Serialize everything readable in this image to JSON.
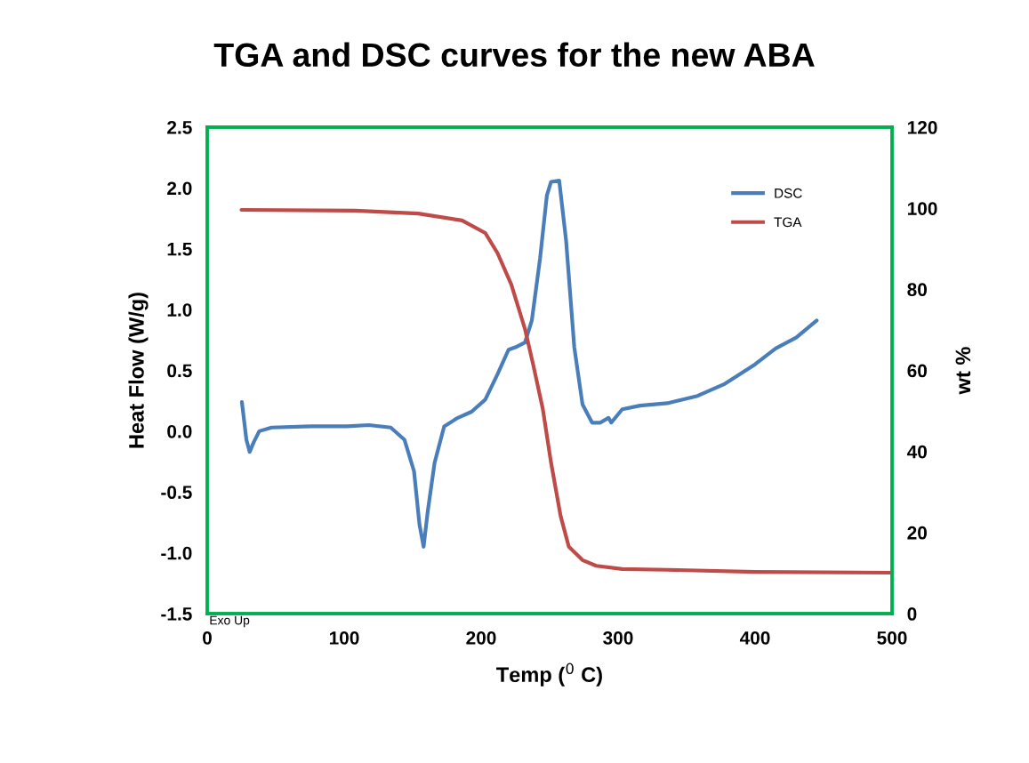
{
  "chart_data": {
    "type": "line",
    "title": "TGA and DSC curves for the new ABA",
    "xlabel": "Temp ($^{0}$ C)",
    "ylabel": "Heat Flow (W/g)",
    "y2label": "wt %",
    "xlim": [
      0,
      500
    ],
    "xticks": [
      0,
      100,
      200,
      300,
      400,
      500
    ],
    "ylim": [
      -1.5,
      2.5
    ],
    "yticks": [
      {
        "value": -1.5,
        "label": "-1.5"
      },
      {
        "value": -1.0,
        "label": "-1.0"
      },
      {
        "value": -0.5,
        "label": "-0.5"
      },
      {
        "value": 0.0,
        "label": "0.0"
      },
      {
        "value": 0.5,
        "label": "0.5"
      },
      {
        "value": 1.0,
        "label": "1.0"
      },
      {
        "value": 1.5,
        "label": "1.5"
      },
      {
        "value": 2.0,
        "label": "2.0"
      },
      {
        "value": 2.5,
        "label": "2.5"
      }
    ],
    "y2lim": [
      0,
      120
    ],
    "y2ticks": [
      0,
      20,
      40,
      60,
      80,
      100,
      120
    ],
    "grid": false,
    "legend": "top right",
    "marker": "none",
    "line_style": "solid",
    "annotations": [
      "Exo Up"
    ],
    "series": [
      {
        "name": "DSC",
        "color": "#4a7ebb",
        "x": [
          25.3,
          28.6,
          31,
          34,
          38,
          47,
          76,
          102,
          118,
          134,
          144,
          151,
          155,
          158,
          161,
          166,
          173,
          183,
          193,
          203,
          212,
          220,
          225,
          232,
          237,
          243,
          248,
          251,
          257,
          262,
          268,
          274,
          281,
          287,
          293,
          295,
          303,
          316,
          336,
          358,
          378,
          400,
          415,
          430,
          445
        ],
        "values": [
          0.24,
          -0.07,
          -0.17,
          -0.09,
          0.0,
          0.03,
          0.04,
          0.04,
          0.05,
          0.03,
          -0.07,
          -0.33,
          -0.77,
          -0.95,
          -0.66,
          -0.26,
          0.04,
          0.11,
          0.16,
          0.26,
          0.47,
          0.67,
          0.69,
          0.73,
          0.91,
          1.42,
          1.94,
          2.05,
          2.06,
          1.57,
          0.69,
          0.22,
          0.07,
          0.07,
          0.11,
          0.07,
          0.18,
          0.21,
          0.23,
          0.29,
          0.39,
          0.55,
          0.68,
          0.77,
          0.91
        ]
      },
      {
        "name": "TGA",
        "color": "#be4b48",
        "axis": "y2",
        "x": [
          25,
          108,
          154,
          186,
          203,
          212,
          222,
          232,
          238,
          245,
          251,
          258,
          264,
          274,
          284,
          303,
          336,
          400,
          500
        ],
        "values": [
          99.6,
          99.4,
          98.7,
          97,
          93.9,
          88.9,
          81.2,
          70.2,
          61.4,
          50.5,
          37.3,
          24.1,
          16.5,
          13.2,
          11.8,
          11,
          10.8,
          10.3,
          10.1
        ]
      }
    ]
  }
}
